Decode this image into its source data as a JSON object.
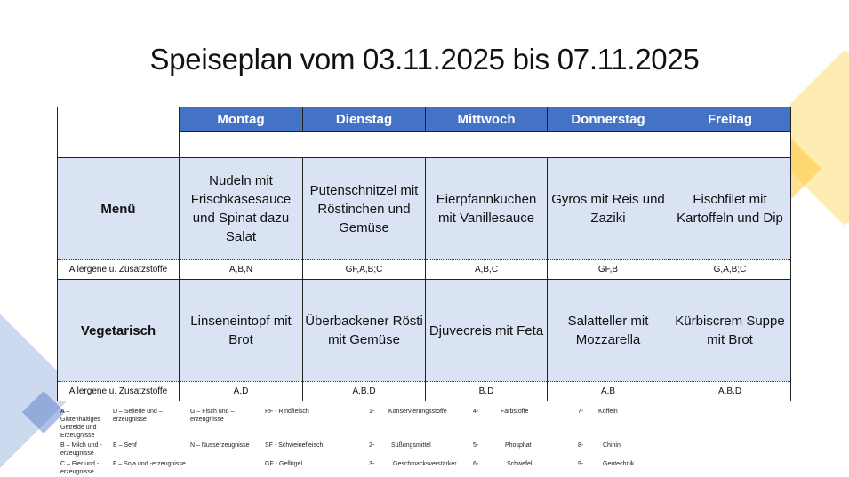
{
  "title": "Speiseplan vom 03.11.2025 bis 07.11.2025",
  "days": [
    "Montag",
    "Dienstag",
    "Mittwoch",
    "Donnerstag",
    "Freitag"
  ],
  "rows": [
    {
      "label": "Menü",
      "dishes": [
        "Nudeln mit Frischkäsesauce und Spinat dazu Salat",
        "Putenschnitzel mit Röstinchen und Gemüse",
        "Eierpfannkuchen mit Vanillesauce",
        "Gyros mit Reis und Zaziki",
        "Fischfilet mit Kartoffeln und Dip"
      ],
      "allergen_label": "Allergene u. Zusatzstoffe",
      "allergens": [
        "A,B,N",
        "GF,A,B;C",
        "A,B,C",
        "GF,B",
        "G,A,B;C"
      ]
    },
    {
      "label": "Vegetarisch",
      "dishes": [
        "Linseneintopf mit Brot",
        "Überbackener Rösti mit Gemüse",
        "Djuvecreis mit Feta",
        "Salatteller mit Mozzarella",
        "Kürbiscrem Suppe mit Brot"
      ],
      "allergen_label": "Allergene u. Zusatzstoffe",
      "allergens": [
        "A,D",
        "A,B,D",
        "B,D",
        "A,B",
        "A,B,D"
      ]
    }
  ],
  "legend": {
    "allergens": [
      "A – Glutenhaltiges Getreide und Erzeugnisse",
      "B – Milch und -erzeugnisse",
      "C – Eier und -erzeugnisse",
      "D – Sellerie und –erzeugnisse",
      "E – Senf",
      "F – Soja und -erzeugnisse",
      "G – Fisch und –erzeugnisse",
      "N – Nusserzeugnisse"
    ],
    "meats": [
      "RF - Rindfleisch",
      "SF - Schweinefleisch",
      "GF - Geflügel"
    ],
    "additives": [
      {
        "num": "1-",
        "name": "Konservierungsstoffe"
      },
      {
        "num": "2-",
        "name": "Süßungsmittel"
      },
      {
        "num": "3-",
        "name": "Geschmacksverstärker"
      },
      {
        "num": "4-",
        "name": "Farbstoffe"
      },
      {
        "num": "5-",
        "name": "Phosphat"
      },
      {
        "num": "6-",
        "name": "Schwefel"
      },
      {
        "num": "7-",
        "name": "Koffein"
      },
      {
        "num": "8-",
        "name": "Chinin"
      },
      {
        "num": "9-",
        "name": "Gentechnik"
      }
    ]
  },
  "colors": {
    "header": "#4472c4",
    "cell": "#dae3f3",
    "yellow": "#ffd966",
    "blue": "#8faadc"
  }
}
